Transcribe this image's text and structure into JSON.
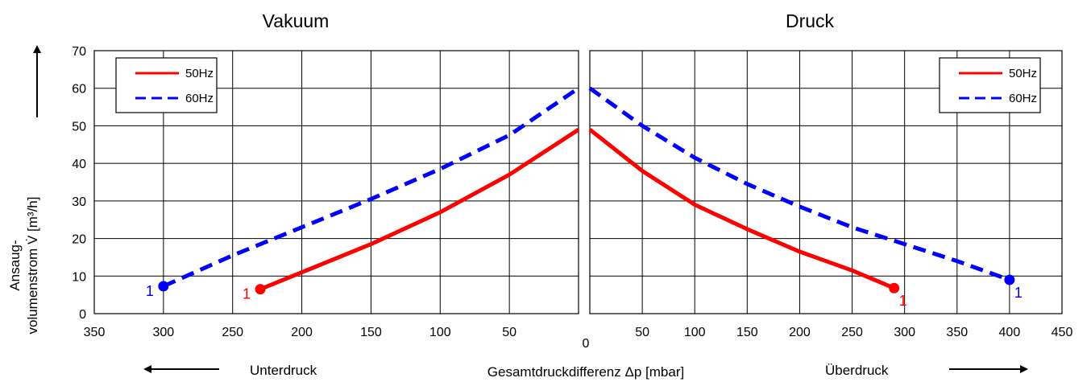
{
  "titles": {
    "left": "Vakuum",
    "right": "Druck"
  },
  "ylabel": {
    "line1": "Ansaug-",
    "line2": "volumenstrom V̇ [m³/h]"
  },
  "xlabel": "Gesamtdruckdifferenz Δp [mbar]",
  "zero_label": "0",
  "direction_labels": {
    "left": "Unterdruck",
    "right": "Überdruck"
  },
  "colors": {
    "50Hz": "#ff0000",
    "60Hz": "#0000ff",
    "grid": "#000000"
  },
  "chart_data": [
    {
      "panel": "Vakuum",
      "type": "line",
      "x_reversed": true,
      "xlim": [
        0,
        350
      ],
      "ylim": [
        0,
        70
      ],
      "xticks": [
        350,
        300,
        250,
        200,
        150,
        100,
        50
      ],
      "yticks": [
        0,
        10,
        20,
        30,
        40,
        50,
        60,
        70
      ],
      "grid": true,
      "legend_position": "top-left",
      "series": [
        {
          "name": "50Hz",
          "style": "solid",
          "color": "#ff0000",
          "end_label": "1",
          "points": [
            [
              230,
              6.5
            ],
            [
              200,
              11
            ],
            [
              150,
              18.5
            ],
            [
              100,
              27
            ],
            [
              50,
              37
            ],
            [
              0,
              49
            ]
          ]
        },
        {
          "name": "60Hz",
          "style": "dashed",
          "color": "#0000ff",
          "end_label": "1",
          "points": [
            [
              300,
              7.3
            ],
            [
              250,
              15.5
            ],
            [
              200,
              23
            ],
            [
              150,
              30.5
            ],
            [
              100,
              38.5
            ],
            [
              50,
              47.5
            ],
            [
              0,
              60
            ]
          ]
        }
      ]
    },
    {
      "panel": "Druck",
      "type": "line",
      "x_reversed": false,
      "xlim": [
        0,
        450
      ],
      "ylim": [
        0,
        70
      ],
      "xticks": [
        50,
        100,
        150,
        200,
        250,
        300,
        350,
        400,
        450
      ],
      "yticks": [
        0,
        10,
        20,
        30,
        40,
        50,
        60,
        70
      ],
      "grid": true,
      "legend_position": "top-right",
      "series": [
        {
          "name": "50Hz",
          "style": "solid",
          "color": "#ff0000",
          "end_label": "1",
          "points": [
            [
              0,
              49
            ],
            [
              50,
              38
            ],
            [
              100,
              29
            ],
            [
              150,
              22.5
            ],
            [
              200,
              16.5
            ],
            [
              250,
              11.5
            ],
            [
              290,
              6.8
            ]
          ]
        },
        {
          "name": "60Hz",
          "style": "dashed",
          "color": "#0000ff",
          "end_label": "1",
          "points": [
            [
              0,
              60
            ],
            [
              50,
              50
            ],
            [
              100,
              41.5
            ],
            [
              150,
              34.5
            ],
            [
              200,
              28.5
            ],
            [
              250,
              23
            ],
            [
              300,
              18.5
            ],
            [
              350,
              14
            ],
            [
              400,
              9
            ]
          ]
        }
      ]
    }
  ]
}
